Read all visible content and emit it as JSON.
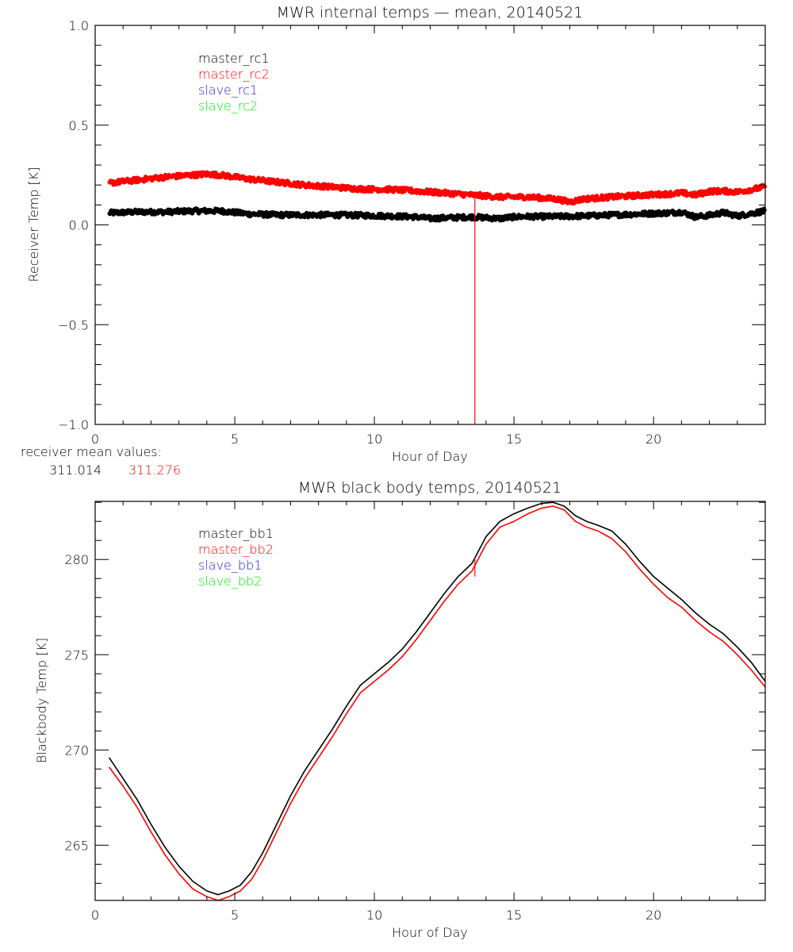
{
  "colors": {
    "black": "#000000",
    "red": "#ff0000",
    "blue": "#2222dd",
    "green": "#00ee00"
  },
  "receiver_mean": {
    "label": "receiver mean values:",
    "values": [
      {
        "text": "311.014",
        "color": "#000000"
      },
      {
        "text": "311.276",
        "color": "#ff0000"
      }
    ]
  },
  "chart_data": [
    {
      "type": "line",
      "title": "MWR internal temps — mean, 20140521",
      "xlabel": "Hour of Day",
      "ylabel": "Receiver Temp [K]",
      "xlim": [
        0,
        24
      ],
      "ylim": [
        -1.0,
        1.0
      ],
      "xticks": [
        0,
        5,
        10,
        15,
        20
      ],
      "xtick_labels": [
        "0",
        "5",
        "10",
        "15",
        "20"
      ],
      "x_minor_step": 1,
      "yticks": [
        -1.0,
        -0.5,
        0.0,
        0.5,
        1.0
      ],
      "ytick_labels": [
        "−1.0",
        "−0.5",
        "0.0",
        "0.5",
        "1.0"
      ],
      "y_minor_step": 0.1,
      "grid": false,
      "legend_position": "top-left",
      "noise": 0.012,
      "series": [
        {
          "name": "master_rc1",
          "color": "#000000",
          "x": [
            0.5,
            1.5,
            2.5,
            3.5,
            4.5,
            5.5,
            6.5,
            7.5,
            8.5,
            9.5,
            10.5,
            11.5,
            12.0,
            12.5,
            13.5,
            14.5,
            15.0,
            15.5,
            16.5,
            17.5,
            18.5,
            19.5,
            20.5,
            21.0,
            21.5,
            22.0,
            22.5,
            23.0,
            24.0
          ],
          "y": [
            0.06,
            0.065,
            0.065,
            0.07,
            0.07,
            0.055,
            0.05,
            0.05,
            0.05,
            0.048,
            0.045,
            0.04,
            0.032,
            0.035,
            0.04,
            0.032,
            0.04,
            0.042,
            0.042,
            0.045,
            0.05,
            0.055,
            0.06,
            0.065,
            0.04,
            0.048,
            0.062,
            0.045,
            0.07
          ]
        },
        {
          "name": "master_rc2",
          "color": "#ff0000",
          "x": [
            0.5,
            1.5,
            2.5,
            3.5,
            4.0,
            4.5,
            5.5,
            6.5,
            7.5,
            8.5,
            9.5,
            10.5,
            11.5,
            12.5,
            13.5,
            14.5,
            15.5,
            16.5,
            17.0,
            17.5,
            18.5,
            19.5,
            20.5,
            21.0,
            21.5,
            22.0,
            22.5,
            23.0,
            24.0
          ],
          "y": [
            0.21,
            0.225,
            0.24,
            0.25,
            0.255,
            0.25,
            0.23,
            0.215,
            0.2,
            0.19,
            0.18,
            0.178,
            0.17,
            0.16,
            0.15,
            0.14,
            0.14,
            0.13,
            0.115,
            0.13,
            0.14,
            0.148,
            0.155,
            0.16,
            0.15,
            0.168,
            0.17,
            0.165,
            0.19
          ]
        },
        {
          "name": "slave_rc1",
          "color": "#2222dd",
          "x": [],
          "y": []
        },
        {
          "name": "slave_rc2",
          "color": "#00ee00",
          "x": [],
          "y": []
        }
      ],
      "annotations": [
        {
          "type": "vline",
          "x": 13.6,
          "y_from": -1.0,
          "y_to": 0.15,
          "color": "#ff0000"
        }
      ]
    },
    {
      "type": "line",
      "title": "MWR black body temps, 20140521",
      "xlabel": "Hour of Day",
      "ylabel": "Blackbody Temp [K]",
      "xlim": [
        0,
        24
      ],
      "ylim": [
        262.1,
        283.05
      ],
      "xticks": [
        0,
        5,
        10,
        15,
        20
      ],
      "xtick_labels": [
        "0",
        "5",
        "10",
        "15",
        "20"
      ],
      "x_minor_step": 1,
      "yticks": [
        265,
        270,
        275,
        280
      ],
      "ytick_labels": [
        "265",
        "270",
        "275",
        "280"
      ],
      "y_minor_step": 1,
      "grid": false,
      "legend_position": "top-left",
      "series": [
        {
          "name": "master_bb1",
          "color": "#000000",
          "x": [
            0.5,
            1.0,
            1.5,
            2.0,
            2.5,
            3.0,
            3.5,
            4.0,
            4.4,
            4.8,
            5.2,
            5.6,
            6.0,
            6.5,
            7.0,
            7.5,
            8.0,
            8.5,
            9.0,
            9.5,
            10.0,
            10.5,
            11.0,
            11.5,
            12.0,
            12.5,
            13.0,
            13.5,
            14.0,
            14.5,
            15.0,
            15.5,
            16.0,
            16.4,
            16.8,
            17.2,
            17.6,
            18.0,
            18.5,
            19.0,
            19.5,
            20.0,
            20.5,
            21.0,
            21.5,
            22.0,
            22.5,
            23.0,
            23.5,
            24.0
          ],
          "y": [
            269.6,
            268.5,
            267.4,
            266.1,
            264.9,
            263.9,
            263.1,
            262.6,
            262.4,
            262.6,
            262.9,
            263.6,
            264.6,
            266.1,
            267.6,
            268.9,
            270.0,
            271.1,
            272.3,
            273.4,
            274.0,
            274.6,
            275.3,
            276.2,
            277.2,
            278.2,
            279.1,
            279.8,
            281.2,
            282.0,
            282.4,
            282.7,
            282.95,
            283.0,
            282.8,
            282.3,
            282.0,
            281.8,
            281.5,
            280.8,
            279.9,
            279.1,
            278.5,
            277.9,
            277.2,
            276.6,
            276.1,
            275.4,
            274.6,
            273.6
          ]
        },
        {
          "name": "master_bb2",
          "color": "#ff0000",
          "x": [
            0.5,
            1.0,
            1.5,
            2.0,
            2.5,
            3.0,
            3.5,
            4.0,
            4.4,
            4.8,
            5.2,
            5.6,
            6.0,
            6.5,
            7.0,
            7.5,
            8.0,
            8.5,
            9.0,
            9.5,
            10.0,
            10.5,
            11.0,
            11.5,
            12.0,
            12.5,
            13.0,
            13.5,
            14.0,
            14.5,
            15.0,
            15.5,
            16.0,
            16.4,
            16.8,
            17.2,
            17.6,
            18.0,
            18.5,
            19.0,
            19.5,
            20.0,
            20.5,
            21.0,
            21.5,
            22.0,
            22.5,
            23.0,
            23.5,
            24.0
          ],
          "y": [
            269.1,
            268.1,
            267.0,
            265.7,
            264.5,
            263.5,
            262.7,
            262.3,
            262.1,
            262.3,
            262.6,
            263.2,
            264.2,
            265.7,
            267.2,
            268.5,
            269.6,
            270.7,
            271.9,
            273.0,
            273.6,
            274.2,
            274.9,
            275.8,
            276.8,
            277.8,
            278.7,
            279.4,
            280.8,
            281.7,
            282.0,
            282.4,
            282.7,
            282.8,
            282.6,
            282.0,
            281.7,
            281.5,
            281.1,
            280.4,
            279.5,
            278.7,
            278.0,
            277.5,
            276.8,
            276.2,
            275.7,
            275.0,
            274.2,
            273.3
          ]
        },
        {
          "name": "slave_bb1",
          "color": "#2222dd",
          "x": [],
          "y": []
        },
        {
          "name": "slave_bb2",
          "color": "#00ee00",
          "x": [],
          "y": []
        }
      ],
      "annotations": [
        {
          "type": "vline",
          "x": 13.6,
          "y_from": 279.1,
          "y_to": 280.1,
          "color": "#ff0000"
        }
      ]
    }
  ]
}
